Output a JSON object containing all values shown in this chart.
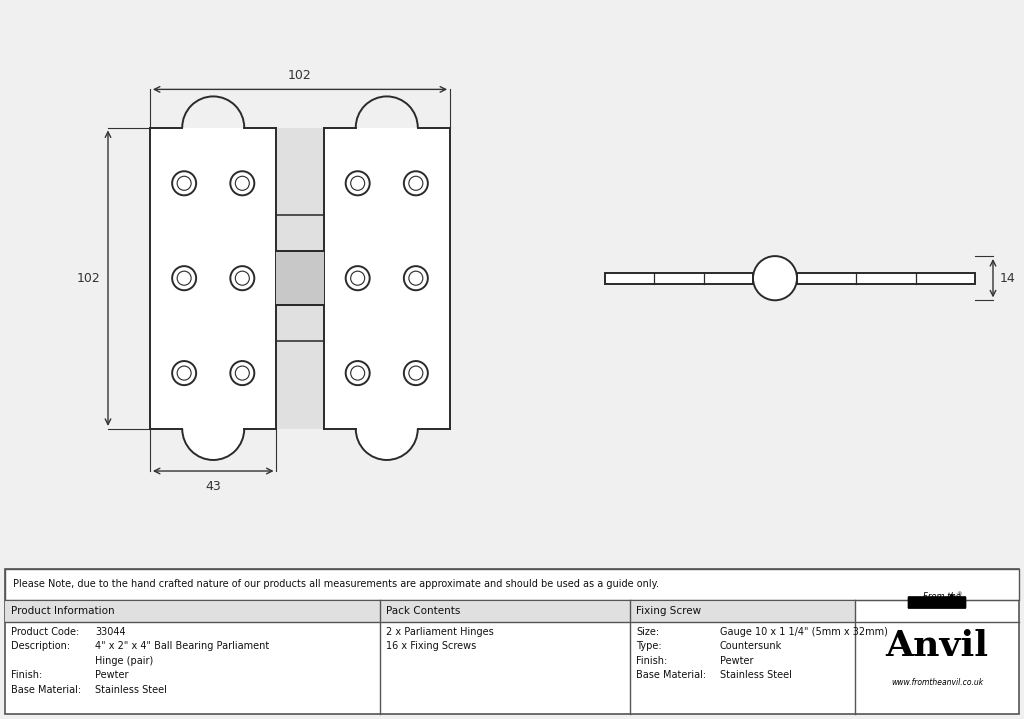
{
  "background_color": "#f0f0f0",
  "drawing_bg": "#ffffff",
  "note_text": "Please Note, due to the hand crafted nature of our products all measurements are approximate and should be used as a guide only.",
  "product_code": "33044",
  "desc_line1": "4\" x 2\" x 4\" Ball Bearing Parliament",
  "desc_line2": "Hinge (pair)",
  "finish": "Pewter",
  "base_material": "Stainless Steel",
  "pack_line1": "2 x Parliament Hinges",
  "pack_line2": "16 x Fixing Screws",
  "screw_size": "Gauge 10 x 1 1/4\" (5mm x 32mm)",
  "screw_type": "Countersunk",
  "screw_finish": "Pewter",
  "screw_base": "Stainless Steel",
  "dim_w": "102",
  "dim_h": "102",
  "dim_d": "43",
  "dim_side": "14",
  "lc": "#2a2a2a",
  "fill_white": "#ffffff",
  "fill_light": "#e0e0e0"
}
